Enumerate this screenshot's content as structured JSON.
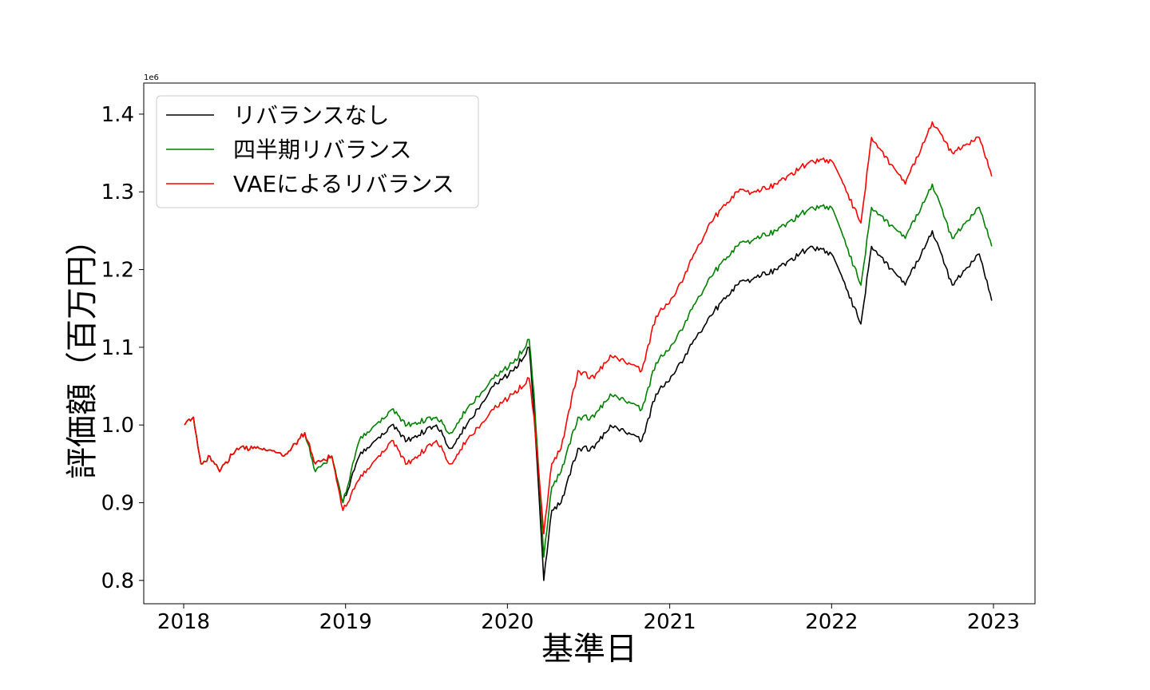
{
  "chart_data": {
    "type": "line",
    "title": "",
    "xlabel": "基準日",
    "ylabel": "評価額（百万円）",
    "y_offset_label": "1e6",
    "xlim": [
      "2018-01-01",
      "2023-01-01"
    ],
    "ylim": [
      0.77,
      1.44
    ],
    "x_ticks": [
      "2018",
      "2019",
      "2020",
      "2021",
      "2022",
      "2023"
    ],
    "y_ticks": [
      "0.8",
      "0.9",
      "1.0",
      "1.1",
      "1.2",
      "1.3",
      "1.4"
    ],
    "grid": false,
    "legend_position": "upper-left",
    "series": [
      {
        "name": "リバランスなし",
        "color": "#000000",
        "points": [
          [
            "2018-01-03",
            1.0
          ],
          [
            "2018-01-23",
            1.01
          ],
          [
            "2018-02-09",
            0.95
          ],
          [
            "2018-03-01",
            0.96
          ],
          [
            "2018-03-23",
            0.94
          ],
          [
            "2018-05-01",
            0.97
          ],
          [
            "2018-07-01",
            0.97
          ],
          [
            "2018-08-15",
            0.96
          ],
          [
            "2018-10-01",
            0.99
          ],
          [
            "2018-10-25",
            0.95
          ],
          [
            "2018-12-01",
            0.96
          ],
          [
            "2018-12-26",
            0.9
          ],
          [
            "2019-02-01",
            0.96
          ],
          [
            "2019-04-15",
            1.0
          ],
          [
            "2019-05-20",
            0.98
          ],
          [
            "2019-07-25",
            1.0
          ],
          [
            "2019-08-26",
            0.97
          ],
          [
            "2019-10-01",
            1.0
          ],
          [
            "2019-12-01",
            1.05
          ],
          [
            "2020-01-15",
            1.07
          ],
          [
            "2020-02-19",
            1.1
          ],
          [
            "2020-03-01",
            1.02
          ],
          [
            "2020-03-23",
            0.8
          ],
          [
            "2020-04-10",
            0.89
          ],
          [
            "2020-05-01",
            0.9
          ],
          [
            "2020-06-08",
            0.97
          ],
          [
            "2020-07-15",
            0.97
          ],
          [
            "2020-08-20",
            1.0
          ],
          [
            "2020-10-01",
            0.99
          ],
          [
            "2020-10-30",
            0.98
          ],
          [
            "2020-12-01",
            1.04
          ],
          [
            "2021-01-15",
            1.07
          ],
          [
            "2021-04-01",
            1.14
          ],
          [
            "2021-06-01",
            1.18
          ],
          [
            "2021-07-15",
            1.19
          ],
          [
            "2021-09-01",
            1.2
          ],
          [
            "2021-11-15",
            1.23
          ],
          [
            "2022-01-01",
            1.22
          ],
          [
            "2022-03-08",
            1.13
          ],
          [
            "2022-04-01",
            1.23
          ],
          [
            "2022-06-16",
            1.18
          ],
          [
            "2022-08-16",
            1.25
          ],
          [
            "2022-09-30",
            1.18
          ],
          [
            "2022-11-30",
            1.22
          ],
          [
            "2022-12-28",
            1.16
          ]
        ]
      },
      {
        "name": "四半期リバランス",
        "color": "#008000",
        "points": [
          [
            "2018-01-03",
            1.0
          ],
          [
            "2018-01-23",
            1.01
          ],
          [
            "2018-02-09",
            0.95
          ],
          [
            "2018-03-01",
            0.96
          ],
          [
            "2018-03-23",
            0.94
          ],
          [
            "2018-05-01",
            0.97
          ],
          [
            "2018-07-01",
            0.97
          ],
          [
            "2018-08-15",
            0.96
          ],
          [
            "2018-10-01",
            0.99
          ],
          [
            "2018-10-25",
            0.94
          ],
          [
            "2018-12-01",
            0.96
          ],
          [
            "2018-12-26",
            0.9
          ],
          [
            "2019-02-01",
            0.98
          ],
          [
            "2019-04-15",
            1.02
          ],
          [
            "2019-05-20",
            1.0
          ],
          [
            "2019-07-25",
            1.01
          ],
          [
            "2019-08-26",
            0.99
          ],
          [
            "2019-10-01",
            1.02
          ],
          [
            "2019-12-01",
            1.06
          ],
          [
            "2020-01-15",
            1.08
          ],
          [
            "2020-02-19",
            1.11
          ],
          [
            "2020-03-01",
            1.04
          ],
          [
            "2020-03-23",
            0.83
          ],
          [
            "2020-04-10",
            0.92
          ],
          [
            "2020-05-01",
            0.94
          ],
          [
            "2020-06-08",
            1.01
          ],
          [
            "2020-07-15",
            1.01
          ],
          [
            "2020-08-20",
            1.04
          ],
          [
            "2020-10-01",
            1.03
          ],
          [
            "2020-10-30",
            1.02
          ],
          [
            "2020-12-01",
            1.08
          ],
          [
            "2021-01-15",
            1.11
          ],
          [
            "2021-04-01",
            1.19
          ],
          [
            "2021-06-01",
            1.23
          ],
          [
            "2021-07-15",
            1.24
          ],
          [
            "2021-09-01",
            1.25
          ],
          [
            "2021-11-15",
            1.28
          ],
          [
            "2022-01-01",
            1.28
          ],
          [
            "2022-03-08",
            1.18
          ],
          [
            "2022-04-01",
            1.28
          ],
          [
            "2022-06-16",
            1.24
          ],
          [
            "2022-08-16",
            1.31
          ],
          [
            "2022-09-30",
            1.24
          ],
          [
            "2022-11-30",
            1.28
          ],
          [
            "2022-12-28",
            1.23
          ]
        ]
      },
      {
        "name": "VAEによるリバランス",
        "color": "#ff0000",
        "points": [
          [
            "2018-01-03",
            1.0
          ],
          [
            "2018-01-23",
            1.01
          ],
          [
            "2018-02-09",
            0.95
          ],
          [
            "2018-03-01",
            0.96
          ],
          [
            "2018-03-23",
            0.94
          ],
          [
            "2018-05-01",
            0.97
          ],
          [
            "2018-07-01",
            0.97
          ],
          [
            "2018-08-15",
            0.96
          ],
          [
            "2018-10-01",
            0.99
          ],
          [
            "2018-10-25",
            0.95
          ],
          [
            "2018-12-01",
            0.96
          ],
          [
            "2018-12-26",
            0.89
          ],
          [
            "2019-02-01",
            0.93
          ],
          [
            "2019-04-15",
            0.98
          ],
          [
            "2019-05-20",
            0.95
          ],
          [
            "2019-07-25",
            0.98
          ],
          [
            "2019-08-26",
            0.95
          ],
          [
            "2019-10-01",
            0.98
          ],
          [
            "2019-12-01",
            1.02
          ],
          [
            "2020-01-15",
            1.04
          ],
          [
            "2020-02-19",
            1.06
          ],
          [
            "2020-03-01",
            1.01
          ],
          [
            "2020-03-23",
            0.86
          ],
          [
            "2020-04-10",
            0.95
          ],
          [
            "2020-05-01",
            0.97
          ],
          [
            "2020-06-08",
            1.07
          ],
          [
            "2020-07-15",
            1.06
          ],
          [
            "2020-08-20",
            1.09
          ],
          [
            "2020-10-01",
            1.08
          ],
          [
            "2020-10-30",
            1.07
          ],
          [
            "2020-12-01",
            1.14
          ],
          [
            "2021-01-15",
            1.17
          ],
          [
            "2021-04-01",
            1.26
          ],
          [
            "2021-06-01",
            1.3
          ],
          [
            "2021-07-15",
            1.3
          ],
          [
            "2021-09-01",
            1.31
          ],
          [
            "2021-11-15",
            1.34
          ],
          [
            "2022-01-01",
            1.34
          ],
          [
            "2022-03-08",
            1.26
          ],
          [
            "2022-04-01",
            1.37
          ],
          [
            "2022-06-16",
            1.31
          ],
          [
            "2022-08-16",
            1.39
          ],
          [
            "2022-09-30",
            1.35
          ],
          [
            "2022-11-30",
            1.37
          ],
          [
            "2022-12-28",
            1.32
          ]
        ]
      }
    ]
  }
}
